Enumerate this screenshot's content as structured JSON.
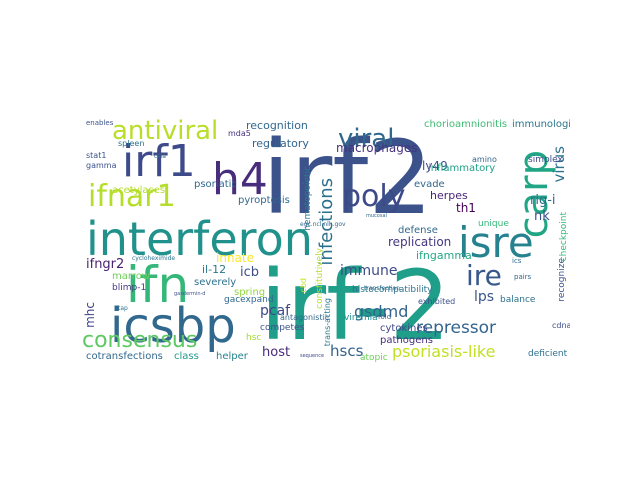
{
  "words": [
    {
      "text": "irf-2",
      "color": "#1f9e89"
    },
    {
      "text": "irf2",
      "color": "#3b528b"
    },
    {
      "text": "interferon",
      "color": "#21918c"
    },
    {
      "text": "icsbp",
      "color": "#31688e"
    },
    {
      "text": "ifn",
      "color": "#35b779"
    },
    {
      "text": "irf1",
      "color": "#3e4a89"
    },
    {
      "text": "h4",
      "color": "#472d7b"
    },
    {
      "text": "isre",
      "color": "#26828e"
    },
    {
      "text": "ifnar1",
      "color": "#b5de2b"
    },
    {
      "text": "carp",
      "color": "#21a685"
    },
    {
      "text": "poly",
      "color": "#3e4989"
    },
    {
      "text": "viral",
      "color": "#30678d"
    },
    {
      "text": "ire",
      "color": "#38588c"
    },
    {
      "text": "antiviral",
      "color": "#b8de29"
    },
    {
      "text": "consensus",
      "color": "#5ec962"
    },
    {
      "text": "infections",
      "color": "#2d708e"
    },
    {
      "text": "psoriasis-like",
      "color": "#c2df23"
    },
    {
      "text": "repressor",
      "color": "#32648e"
    },
    {
      "text": "gsdmd",
      "color": "#33638d"
    },
    {
      "text": "macrophages",
      "color": "#46337e"
    },
    {
      "text": "ly49",
      "color": "#3d4d8a"
    },
    {
      "text": "recognition",
      "color": "#31688e"
    },
    {
      "text": "regulatory",
      "color": "#32658e"
    },
    {
      "text": "chorioamnionitis",
      "color": "#3fbc73"
    },
    {
      "text": "immunologic",
      "color": "#2a768e"
    },
    {
      "text": "virus",
      "color": "#2c728e"
    },
    {
      "text": "rig-i",
      "color": "#2f6b8e"
    },
    {
      "text": "inflammatory",
      "color": "#20a386"
    },
    {
      "text": "herpes",
      "color": "#482576"
    },
    {
      "text": "evade",
      "color": "#31688e"
    },
    {
      "text": "th1",
      "color": "#440154"
    },
    {
      "text": "nk",
      "color": "#3b528b"
    },
    {
      "text": "replication",
      "color": "#453781"
    },
    {
      "text": "defense",
      "color": "#31688e"
    },
    {
      "text": "ifngamma",
      "color": "#22a884"
    },
    {
      "text": "immune",
      "color": "#3e4a89"
    },
    {
      "text": "lps",
      "color": "#39568c"
    },
    {
      "text": "ifngr2",
      "color": "#481f70"
    },
    {
      "text": "pcaf",
      "color": "#3f4788"
    },
    {
      "text": "icb",
      "color": "#3d4e8a"
    },
    {
      "text": "hscs",
      "color": "#33638d"
    },
    {
      "text": "host",
      "color": "#482878"
    },
    {
      "text": "hsc",
      "color": "#a5db36"
    },
    {
      "text": "mhc",
      "color": "#414487"
    },
    {
      "text": "marrow",
      "color": "#6ece58"
    },
    {
      "text": "innate",
      "color": "#fde725"
    },
    {
      "text": "psoriatic",
      "color": "#31688e"
    },
    {
      "text": "pyroptosis",
      "color": "#31688e"
    },
    {
      "text": "il-12",
      "color": "#2a788e"
    },
    {
      "text": "acetylases",
      "color": "#b5de2b"
    },
    {
      "text": "blimp-1",
      "color": "#443a83"
    },
    {
      "text": "severely",
      "color": "#2c728e"
    },
    {
      "text": "spring",
      "color": "#95d840"
    },
    {
      "text": "gacexpand",
      "color": "#31688e"
    },
    {
      "text": "competes",
      "color": "#3b528b"
    },
    {
      "text": "helper",
      "color": "#26828e"
    },
    {
      "text": "class",
      "color": "#1f9a8a"
    },
    {
      "text": "cotransfections",
      "color": "#31688e"
    },
    {
      "text": "cytokines",
      "color": "#3e4989"
    },
    {
      "text": "pathogens",
      "color": "#472c7a"
    },
    {
      "text": "viremia",
      "color": "#228d8d"
    },
    {
      "text": "histocompatibility",
      "color": "#2c728e"
    },
    {
      "text": "exhibited",
      "color": "#3b528b"
    },
    {
      "text": "balance",
      "color": "#2d708e"
    },
    {
      "text": "atopic",
      "color": "#6ece58"
    },
    {
      "text": "deficient",
      "color": "#2e6f8e"
    },
    {
      "text": "cdna",
      "color": "#3e4c8a"
    },
    {
      "text": "recognize",
      "color": "#3b528b"
    },
    {
      "text": "checkpoint",
      "color": "#35b779"
    },
    {
      "text": "unique",
      "color": "#35b779"
    },
    {
      "text": "simplex",
      "color": "#3f4889"
    },
    {
      "text": "amino",
      "color": "#31688e"
    },
    {
      "text": "hematopoietic",
      "color": "#277f8e"
    },
    {
      "text": "constitutively",
      "color": "#b5de2b"
    },
    {
      "text": "trans-acting",
      "color": "#2a788e"
    },
    {
      "text": "antagonistic",
      "color": "#31688e"
    },
    {
      "text": "spleen",
      "color": "#2d708e"
    },
    {
      "text": "stat1",
      "color": "#3a548c"
    },
    {
      "text": "gamma",
      "color": "#3b518b"
    },
    {
      "text": "mda5",
      "color": "#46327e"
    },
    {
      "text": "cbd",
      "color": "#c8e020"
    },
    {
      "text": "ics",
      "color": "#2c718e"
    },
    {
      "text": "fold",
      "color": "#33628d"
    },
    {
      "text": "transfection",
      "color": "#2d708e"
    },
    {
      "text": "enables",
      "color": "#3b528b"
    },
    {
      "text": "cilia",
      "color": "#2d708e"
    },
    {
      "text": "tap",
      "color": "#2c728e"
    },
    {
      "text": "pairs",
      "color": "#31688e"
    },
    {
      "text": "cycloheximide",
      "color": "#2c728e"
    },
    {
      "text": "sequence",
      "color": "#3f4889"
    },
    {
      "text": "gasdermin-d",
      "color": "#3b528b"
    },
    {
      "text": "mucosal",
      "color": "#31688e"
    },
    {
      "text": "egc.ncl.nlh.gov",
      "color": "#31688e"
    }
  ]
}
